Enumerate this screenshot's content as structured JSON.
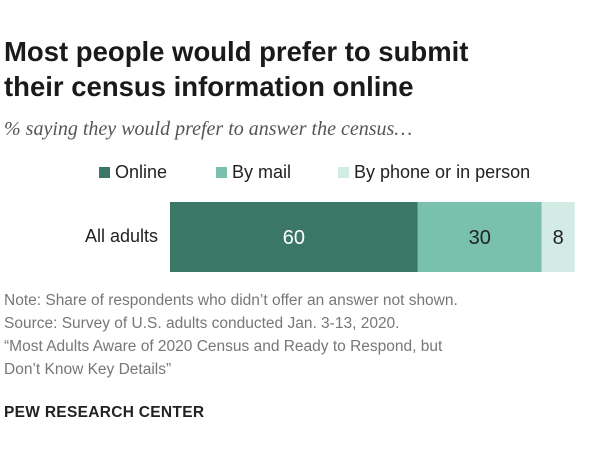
{
  "title_line1": "Most people would prefer to submit",
  "title_line2": "their census information online",
  "subtitle": "% saying they would prefer to answer the census…",
  "colors": {
    "online": "#3a7767",
    "by_mail": "#79c1ac",
    "by_phone_or_in_person": "#d3ebe5",
    "label_dark_bg": "#ffffff",
    "label_light_bg": "#222222"
  },
  "chart_data": {
    "type": "bar",
    "orientation": "horizontal-stacked",
    "categories": [
      "All adults"
    ],
    "series": [
      {
        "name": "Online",
        "values": [
          60
        ]
      },
      {
        "name": "By mail",
        "values": [
          30
        ]
      },
      {
        "name": "By phone or in person",
        "values": [
          8
        ]
      }
    ],
    "data_labels": [
      "60",
      "30",
      "8"
    ],
    "xlim": [
      0,
      100
    ],
    "grid": false,
    "legend_position": "top"
  },
  "notes": {
    "line1": "Note: Share of respondents who didn’t offer an answer not shown.",
    "line2": "Source: Survey of U.S. adults conducted Jan. 3-13, 2020.",
    "line3": "“Most Adults Aware of 2020 Census and Ready to Respond, but",
    "line4": "Don’t Know Key Details”"
  },
  "brand": "PEW RESEARCH CENTER"
}
